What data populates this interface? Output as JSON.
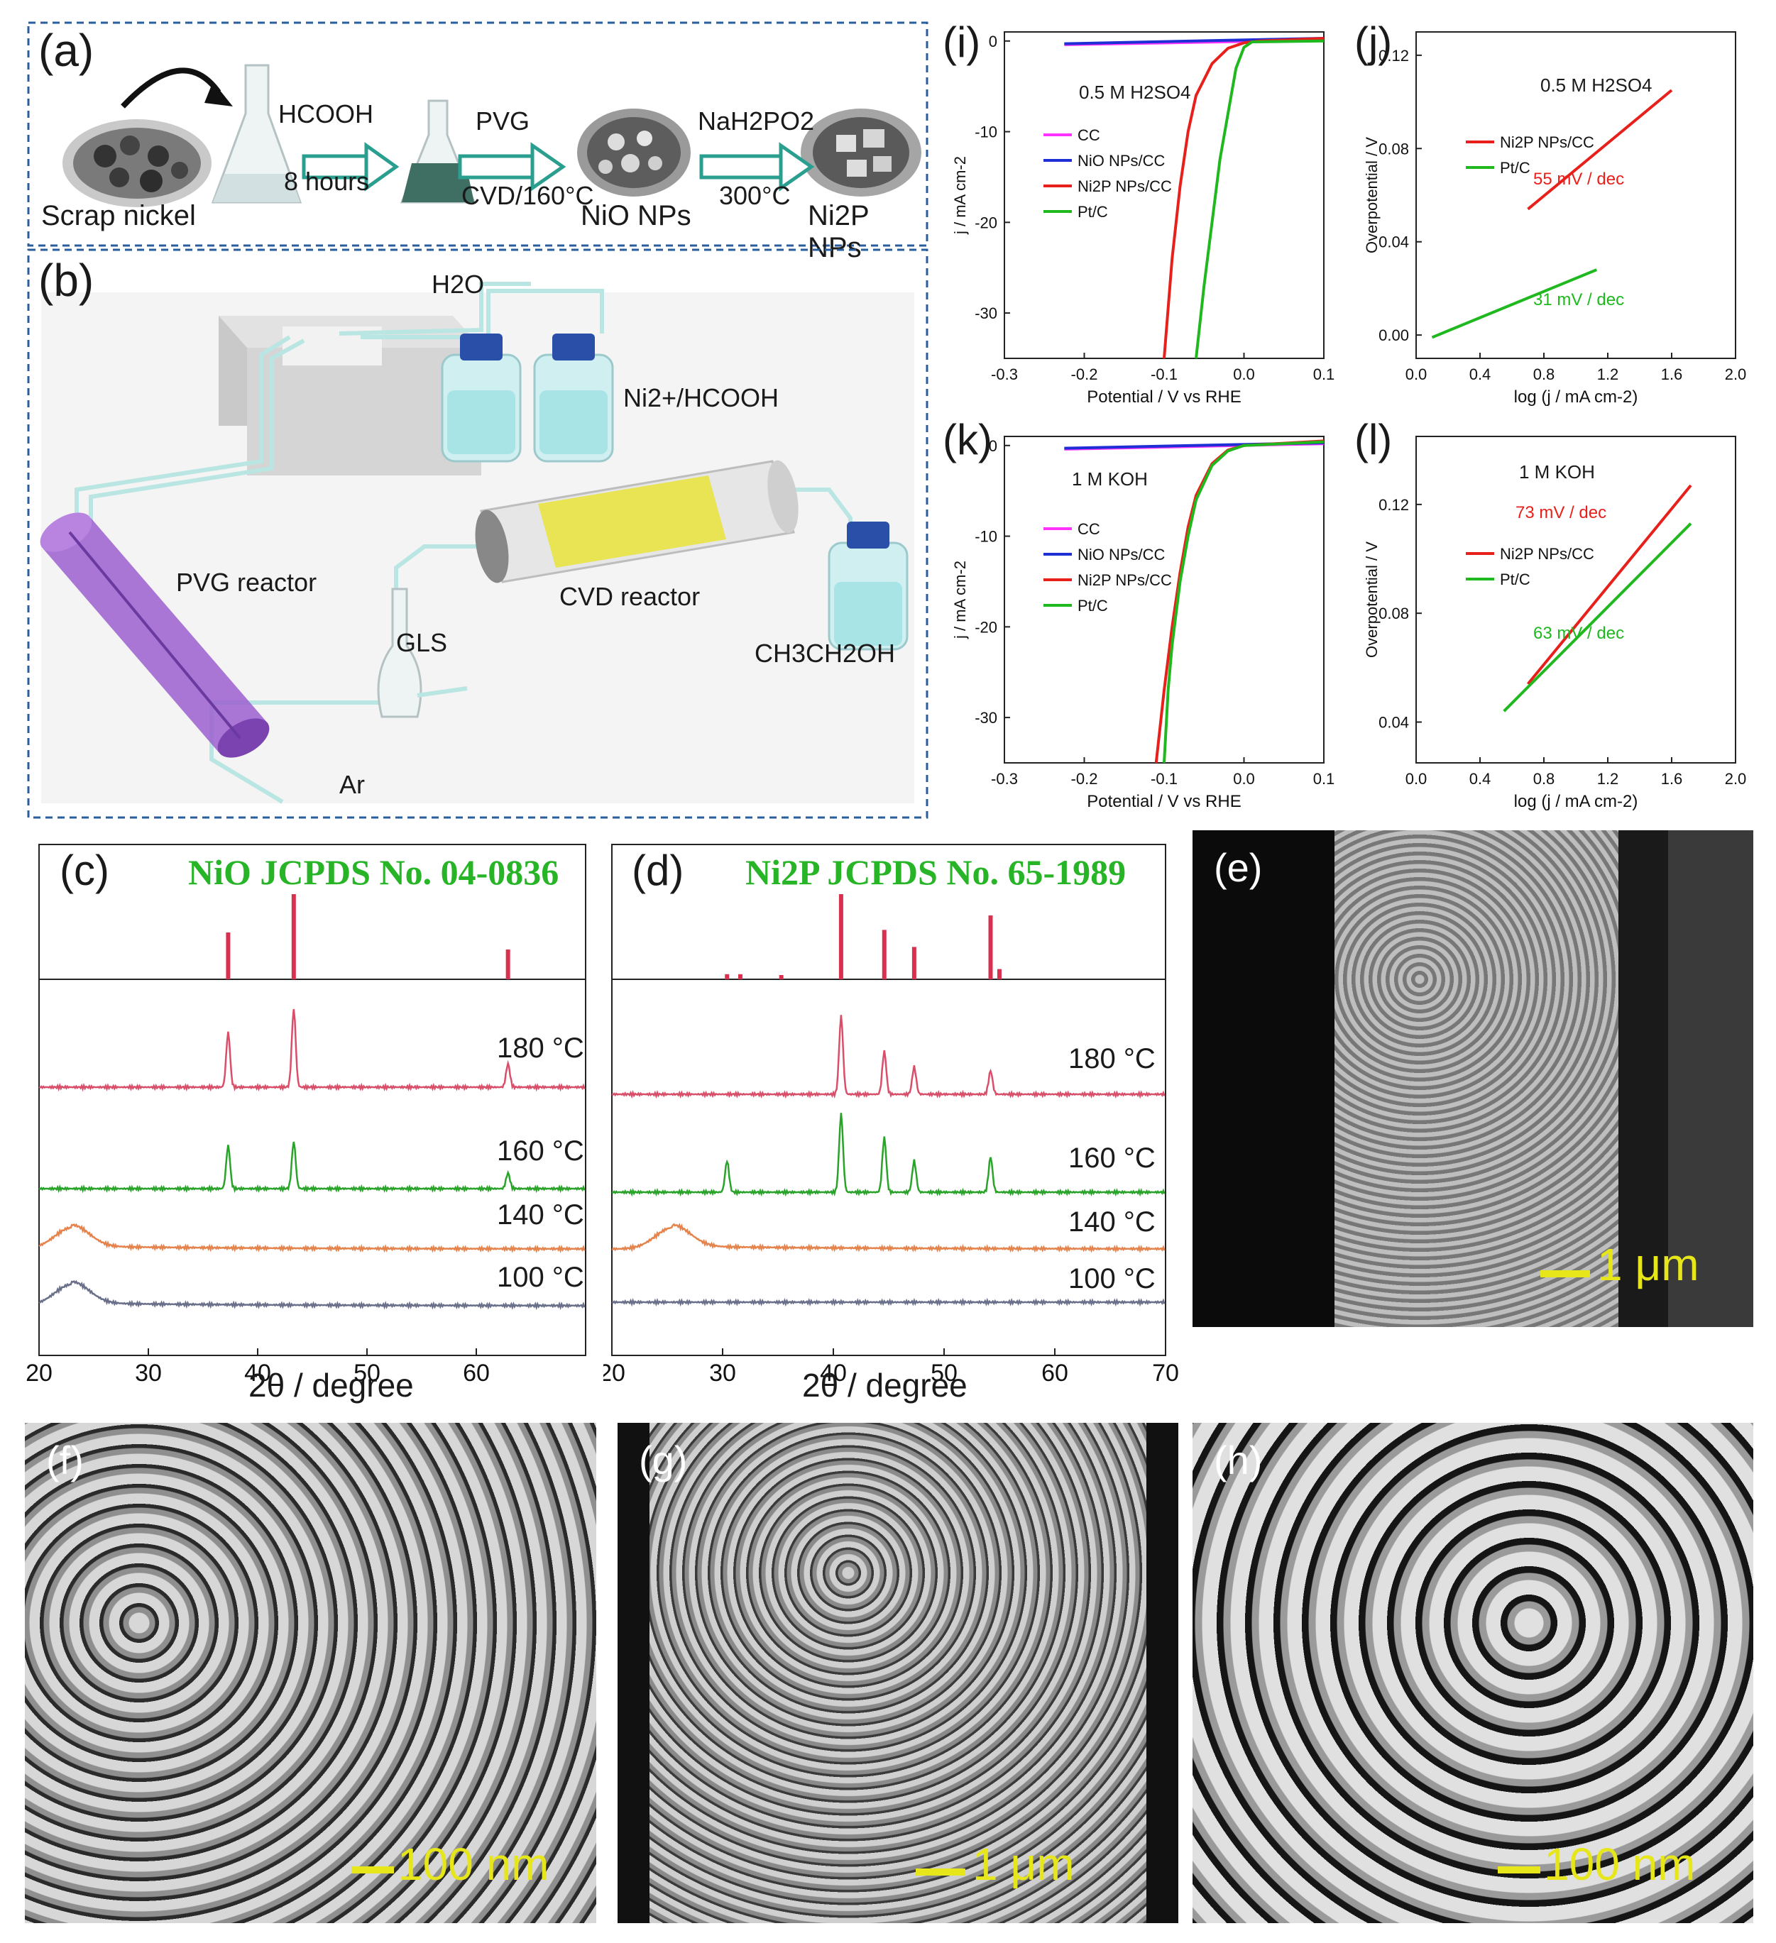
{
  "panel_a": {
    "label": "(a)",
    "steps": [
      {
        "caption": "Scrap nickel"
      },
      {
        "arrow_top": "HCOOH",
        "arrow_bottom": "8 hours"
      },
      {
        "arrow_top": "PVG",
        "arrow_bottom": "CVD/160°C"
      },
      {
        "caption": "NiO NPs"
      },
      {
        "arrow_top": "NaH2PO2",
        "arrow_bottom": "300°C"
      },
      {
        "caption": "Ni2P NPs"
      }
    ]
  },
  "panel_b": {
    "label": "(b)",
    "h2o": "H2O",
    "ni_hcooh": "Ni2+/HCOOH",
    "pvg": "PVG reactor",
    "cvd": "CVD reactor",
    "gls": "GLS",
    "ethanol": "CH3CH2OH",
    "ar": "Ar"
  },
  "panel_c": {
    "label": "(c)",
    "ref_title": "NiO JCPDS No. 04-0836",
    "xlabel": "2θ / degree",
    "ticks": [
      "20",
      "30",
      "40",
      "50",
      "60"
    ],
    "temps": [
      "180 °C",
      "160 °C",
      "140 °C",
      "100 °C"
    ]
  },
  "panel_d": {
    "label": "(d)",
    "ref_title": "Ni2P JCPDS No. 65-1989",
    "xlabel": "2θ / degree",
    "ticks": [
      "20",
      "30",
      "40",
      "50",
      "60",
      "70"
    ],
    "temps": [
      "180 °C",
      "160 °C",
      "140 °C",
      "100 °C"
    ]
  },
  "sem": {
    "e": {
      "label": "(e)",
      "scale": "1 μm"
    },
    "f": {
      "label": "(f)",
      "scale": "100 nm"
    },
    "g": {
      "label": "(g)",
      "scale": "1 μm"
    },
    "h": {
      "label": "(h)",
      "scale": "100 nm"
    }
  },
  "chart_data": [
    {
      "id": "i",
      "label": "(i)",
      "type": "line",
      "annotation": "0.5 M H2SO4",
      "xlabel": "Potential / V vs RHE",
      "ylabel": "j / mA cm-2",
      "xlim": [
        -0.3,
        0.1
      ],
      "ylim": [
        -35,
        1
      ],
      "xticks": [
        "-0.3",
        "-0.2",
        "-0.1",
        "0.0",
        "0.1"
      ],
      "yticks": [
        "0",
        "-10",
        "-20",
        "-30"
      ],
      "legend": [
        "CC",
        "NiO NPs/CC",
        "Ni2P NPs/CC",
        "Pt/C"
      ],
      "series": [
        {
          "name": "CC",
          "color": "#ff33ff",
          "x": [
            -0.225,
            0.1
          ],
          "y": [
            -0.4,
            0.1
          ]
        },
        {
          "name": "NiO NPs/CC",
          "color": "#1f2fd6",
          "x": [
            -0.225,
            0.1
          ],
          "y": [
            -0.3,
            0.3
          ]
        },
        {
          "name": "Ni2P NPs/CC",
          "color": "#e8201c",
          "x": [
            -0.1,
            -0.09,
            -0.08,
            -0.07,
            -0.06,
            -0.04,
            -0.02,
            0.0,
            0.02,
            0.1
          ],
          "y": [
            -35,
            -24,
            -16,
            -10,
            -6,
            -2.5,
            -0.8,
            -0.2,
            0.0,
            0.3
          ]
        },
        {
          "name": "Pt/C",
          "color": "#1fb81f",
          "x": [
            -0.06,
            -0.05,
            -0.04,
            -0.03,
            -0.02,
            -0.01,
            0.0,
            0.01,
            0.1
          ],
          "y": [
            -35,
            -27,
            -20,
            -13,
            -8,
            -3,
            -0.7,
            -0.1,
            0.0
          ]
        }
      ]
    },
    {
      "id": "j",
      "label": "(j)",
      "type": "line",
      "annotation": "0.5 M H2SO4",
      "xlabel": "log (j / mA cm-2)",
      "ylabel": "Overpotential / V",
      "xlim": [
        0.0,
        2.0
      ],
      "ylim": [
        -0.01,
        0.13
      ],
      "xticks": [
        "0.0",
        "0.4",
        "0.8",
        "1.2",
        "1.6",
        "2.0"
      ],
      "yticks": [
        "0.00",
        "0.04",
        "0.08",
        "0.12"
      ],
      "legend": [
        "Ni2P NPs/CC",
        "Pt/C"
      ],
      "slopes": [
        "55 mV / dec",
        "31 mV / dec"
      ],
      "series": [
        {
          "name": "Ni2P NPs/CC",
          "color": "#e8201c",
          "x": [
            0.7,
            1.6
          ],
          "y": [
            0.054,
            0.105
          ]
        },
        {
          "name": "Pt/C",
          "color": "#1fb81f",
          "x": [
            0.1,
            1.13
          ],
          "y": [
            -0.001,
            0.028
          ]
        }
      ]
    },
    {
      "id": "k",
      "label": "(k)",
      "type": "line",
      "annotation": "1 M KOH",
      "xlabel": "Potential / V vs RHE",
      "ylabel": "j / mA cm-2",
      "xlim": [
        -0.3,
        0.1
      ],
      "ylim": [
        -35,
        1
      ],
      "xticks": [
        "-0.3",
        "-0.2",
        "-0.1",
        "0.0",
        "0.1"
      ],
      "yticks": [
        "0",
        "-10",
        "-20",
        "-30"
      ],
      "legend": [
        "CC",
        "NiO NPs/CC",
        "Ni2P NPs/CC",
        "Pt/C"
      ],
      "series": [
        {
          "name": "CC",
          "color": "#ff33ff",
          "x": [
            -0.225,
            0.1
          ],
          "y": [
            -0.4,
            0.2
          ]
        },
        {
          "name": "NiO NPs/CC",
          "color": "#1f2fd6",
          "x": [
            -0.225,
            0.1
          ],
          "y": [
            -0.3,
            0.3
          ]
        },
        {
          "name": "Ni2P NPs/CC",
          "color": "#e8201c",
          "x": [
            -0.11,
            -0.1,
            -0.09,
            -0.08,
            -0.07,
            -0.06,
            -0.04,
            -0.02,
            0.0,
            0.1
          ],
          "y": [
            -35,
            -27,
            -20,
            -14,
            -9,
            -5.5,
            -2,
            -0.5,
            0.0,
            0.5
          ]
        },
        {
          "name": "Pt/C",
          "color": "#1fb81f",
          "x": [
            -0.1,
            -0.095,
            -0.09,
            -0.08,
            -0.07,
            -0.06,
            -0.04,
            -0.02,
            0.0,
            0.1
          ],
          "y": [
            -35,
            -27,
            -22,
            -15,
            -10,
            -6,
            -2.2,
            -0.6,
            0.0,
            0.4
          ]
        }
      ]
    },
    {
      "id": "l",
      "label": "(l)",
      "type": "line",
      "annotation": "1 M KOH",
      "xlabel": "log (j / mA cm-2)",
      "ylabel": "Overpotential / V",
      "xlim": [
        0.0,
        2.0
      ],
      "ylim": [
        0.025,
        0.145
      ],
      "xticks": [
        "0.0",
        "0.4",
        "0.8",
        "1.2",
        "1.6",
        "2.0"
      ],
      "yticks": [
        "0.04",
        "0.08",
        "0.12"
      ],
      "legend": [
        "Ni2P NPs/CC",
        "Pt/C"
      ],
      "slopes": [
        "73 mV / dec",
        "63 mV / dec"
      ],
      "series": [
        {
          "name": "Ni2P NPs/CC",
          "color": "#e8201c",
          "x": [
            0.7,
            1.72
          ],
          "y": [
            0.054,
            0.127
          ]
        },
        {
          "name": "Pt/C",
          "color": "#1fb81f",
          "x": [
            0.55,
            1.72
          ],
          "y": [
            0.044,
            0.113
          ]
        }
      ]
    },
    {
      "id": "c",
      "type": "line",
      "xlim": [
        20,
        70
      ],
      "xticks": [
        20,
        30,
        40,
        50,
        60
      ],
      "reference_peaks": [
        {
          "x": 37.3,
          "h": 0.55
        },
        {
          "x": 43.3,
          "h": 1.0
        },
        {
          "x": 62.9,
          "h": 0.35
        }
      ],
      "series": [
        {
          "name": "180 °C",
          "color": "#d94f6a",
          "peaks": [
            [
              37.3,
              0.7
            ],
            [
              43.3,
              1.0
            ],
            [
              62.9,
              0.3
            ]
          ]
        },
        {
          "name": "160 °C",
          "color": "#2aa32a",
          "peaks": [
            [
              37.3,
              0.55
            ],
            [
              43.3,
              0.6
            ],
            [
              62.9,
              0.2
            ]
          ]
        },
        {
          "name": "140 °C",
          "color": "#e5834d",
          "hump": 23
        },
        {
          "name": "100 °C",
          "color": "#6a6f8a",
          "hump": 23
        }
      ]
    },
    {
      "id": "d",
      "type": "line",
      "xlim": [
        20,
        70
      ],
      "xticks": [
        20,
        30,
        40,
        50,
        60,
        70
      ],
      "reference_peaks": [
        {
          "x": 30.4,
          "h": 0.06
        },
        {
          "x": 31.6,
          "h": 0.06
        },
        {
          "x": 35.3,
          "h": 0.05
        },
        {
          "x": 40.7,
          "h": 1.0
        },
        {
          "x": 44.6,
          "h": 0.58
        },
        {
          "x": 47.3,
          "h": 0.38
        },
        {
          "x": 54.2,
          "h": 0.75
        },
        {
          "x": 55.0,
          "h": 0.12
        }
      ],
      "series": [
        {
          "name": "180 °C",
          "color": "#d94f6a",
          "peaks": [
            [
              40.7,
              1.0
            ],
            [
              44.6,
              0.55
            ],
            [
              47.3,
              0.35
            ],
            [
              54.2,
              0.3
            ]
          ]
        },
        {
          "name": "160 °C",
          "color": "#2aa32a",
          "peaks": [
            [
              30.4,
              0.4
            ],
            [
              40.7,
              1.0
            ],
            [
              44.6,
              0.7
            ],
            [
              47.3,
              0.4
            ],
            [
              54.2,
              0.45
            ]
          ]
        },
        {
          "name": "140 °C",
          "color": "#e5834d",
          "hump": 25.5
        },
        {
          "name": "100 °C",
          "color": "#6a6f8a"
        }
      ]
    }
  ]
}
